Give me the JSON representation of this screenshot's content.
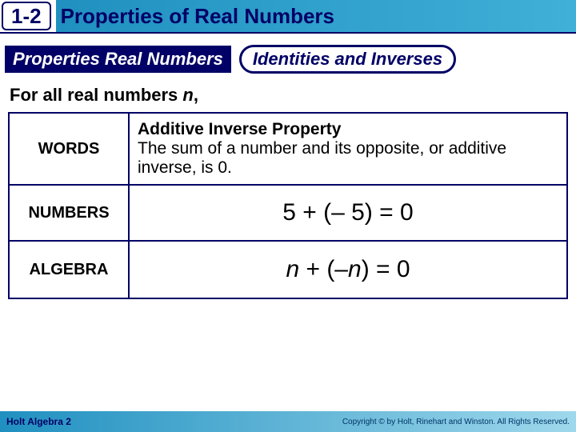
{
  "header": {
    "section_number": "1-2",
    "title": "Properties of Real Numbers",
    "title_color": "#000066",
    "bar_gradient_from": "#2090c0",
    "bar_gradient_to": "#40b0d8"
  },
  "subtitle": {
    "block_text": "Properties Real Numbers",
    "block_bg": "#000066",
    "block_fg": "#ffffff",
    "pill_text": "Identities and Inverses",
    "pill_border": "#000066",
    "pill_fg": "#000066"
  },
  "intro": {
    "prefix": "For all real numbers ",
    "variable": "n",
    "suffix": ","
  },
  "table": {
    "border_color": "#000066",
    "rows": [
      {
        "label": "WORDS",
        "title": "Additive Inverse Property",
        "body": "The sum of a number and its opposite, or additive inverse, is 0."
      },
      {
        "label": "NUMBERS",
        "math_html": "5 + (– 5) = 0"
      },
      {
        "label": "ALGEBRA",
        "math_html_var": "n + (–n) = 0"
      }
    ]
  },
  "footer": {
    "left": "Holt Algebra 2",
    "right": "Copyright © by Holt, Rinehart and Winston. All Rights Reserved."
  }
}
